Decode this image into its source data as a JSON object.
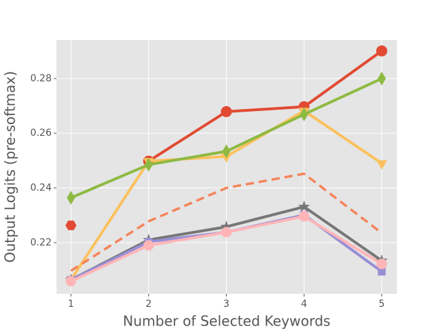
{
  "chart_data": {
    "type": "line",
    "x_label": "Number of Selected Keywords",
    "y_label": "Output Logits (pre-softmax)",
    "x": [
      1,
      2,
      3,
      4,
      5
    ],
    "xlim": [
      0.814,
      5.195
    ],
    "xticks": [
      1,
      2,
      3,
      4,
      5
    ],
    "ylim": [
      0.2013,
      0.2941
    ],
    "yticks": [
      0.22,
      0.24,
      0.26,
      0.28
    ],
    "grid": true,
    "series": [
      {
        "color": "#E24A33",
        "marker": "circle",
        "line": "solid",
        "values": [
          null,
          0.2498,
          0.2679,
          0.2697,
          0.2901
        ]
      },
      {
        "color": "#E24A33",
        "marker": "hexagon",
        "line": "none",
        "values": [
          0.2263,
          null,
          null,
          null,
          null
        ]
      },
      {
        "color": "#FBC15E",
        "marker": "triangle-down",
        "line": "solid",
        "values": [
          0.2064,
          0.2498,
          0.2515,
          0.2682,
          0.249
        ]
      },
      {
        "color": "#F5845A",
        "marker": "none",
        "line": "dashed",
        "values": [
          0.2097,
          0.2278,
          0.24,
          0.2452,
          0.2235
        ]
      },
      {
        "color": "#8EBA42",
        "marker": "diamond",
        "line": "solid",
        "values": [
          0.2364,
          0.2485,
          0.2534,
          0.2669,
          0.28
        ]
      },
      {
        "color": "#777777",
        "marker": "star",
        "line": "solid",
        "values": [
          0.2064,
          0.221,
          0.2258,
          0.2331,
          0.2134
        ]
      },
      {
        "color": "#988ED5",
        "marker": "square",
        "line": "solid",
        "values": [
          0.2064,
          0.2203,
          0.2238,
          0.2301,
          0.2094
        ]
      },
      {
        "color": "#FFB5B8",
        "marker": "octagon",
        "line": "solid",
        "values": [
          0.2059,
          0.219,
          0.2238,
          0.2296,
          0.2122
        ]
      }
    ]
  }
}
